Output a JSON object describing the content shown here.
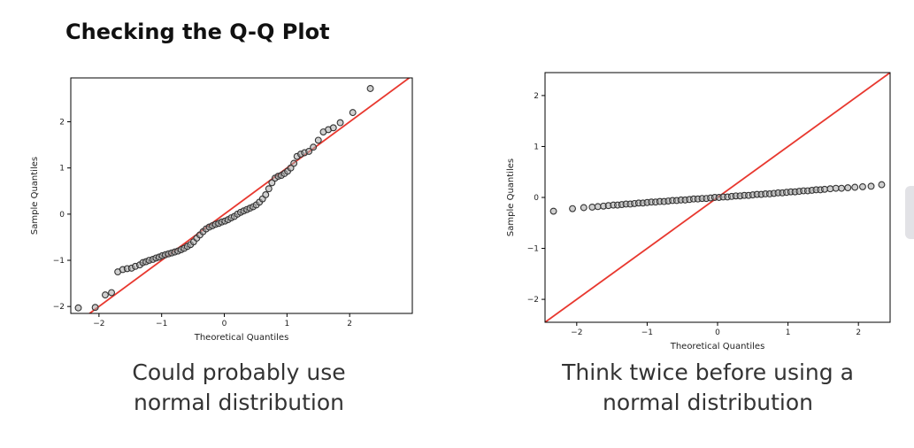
{
  "page": {
    "title": "Checking the Q-Q Plot"
  },
  "captions": {
    "left": [
      "Could probably use",
      "normal distribution"
    ],
    "right": [
      "Think twice before using a",
      "normal distribution"
    ]
  },
  "colors": {
    "reference_line": "#e8382f",
    "marker_edge": "#333333",
    "marker_fill": "#aaaaaa"
  },
  "chart_data": [
    {
      "type": "scatter",
      "xlabel": "Theoretical Quantiles",
      "ylabel": "Sample Quantiles",
      "xlim": [
        -2.45,
        3.0
      ],
      "ylim": [
        -2.15,
        2.95
      ],
      "xticks": [
        -2,
        -1,
        0,
        1,
        2
      ],
      "yticks": [
        -2,
        -1,
        0,
        1,
        2
      ],
      "reference_line": {
        "slope": 1,
        "intercept": 0
      },
      "points": [
        [
          -2.33,
          -2.03
        ],
        [
          -2.06,
          -2.02
        ],
        [
          -1.9,
          -1.75
        ],
        [
          -1.8,
          -1.7
        ],
        [
          -1.7,
          -1.25
        ],
        [
          -1.62,
          -1.2
        ],
        [
          -1.55,
          -1.18
        ],
        [
          -1.48,
          -1.17
        ],
        [
          -1.42,
          -1.13
        ],
        [
          -1.35,
          -1.1
        ],
        [
          -1.3,
          -1.05
        ],
        [
          -1.25,
          -1.03
        ],
        [
          -1.2,
          -1.0
        ],
        [
          -1.14,
          -0.98
        ],
        [
          -1.09,
          -0.95
        ],
        [
          -1.04,
          -0.93
        ],
        [
          -0.99,
          -0.9
        ],
        [
          -0.94,
          -0.88
        ],
        [
          -0.89,
          -0.86
        ],
        [
          -0.84,
          -0.84
        ],
        [
          -0.79,
          -0.82
        ],
        [
          -0.74,
          -0.8
        ],
        [
          -0.69,
          -0.77
        ],
        [
          -0.64,
          -0.74
        ],
        [
          -0.59,
          -0.7
        ],
        [
          -0.54,
          -0.66
        ],
        [
          -0.49,
          -0.6
        ],
        [
          -0.44,
          -0.52
        ],
        [
          -0.39,
          -0.45
        ],
        [
          -0.34,
          -0.38
        ],
        [
          -0.29,
          -0.32
        ],
        [
          -0.24,
          -0.28
        ],
        [
          -0.19,
          -0.25
        ],
        [
          -0.14,
          -0.22
        ],
        [
          -0.09,
          -0.2
        ],
        [
          -0.04,
          -0.17
        ],
        [
          0.01,
          -0.15
        ],
        [
          0.06,
          -0.12
        ],
        [
          0.11,
          -0.08
        ],
        [
          0.16,
          -0.05
        ],
        [
          0.21,
          0.0
        ],
        [
          0.26,
          0.04
        ],
        [
          0.31,
          0.07
        ],
        [
          0.36,
          0.1
        ],
        [
          0.41,
          0.13
        ],
        [
          0.46,
          0.16
        ],
        [
          0.51,
          0.2
        ],
        [
          0.56,
          0.26
        ],
        [
          0.61,
          0.33
        ],
        [
          0.66,
          0.42
        ],
        [
          0.71,
          0.55
        ],
        [
          0.76,
          0.68
        ],
        [
          0.81,
          0.78
        ],
        [
          0.86,
          0.82
        ],
        [
          0.91,
          0.84
        ],
        [
          0.96,
          0.88
        ],
        [
          1.01,
          0.93
        ],
        [
          1.06,
          1.0
        ],
        [
          1.11,
          1.1
        ],
        [
          1.16,
          1.25
        ],
        [
          1.22,
          1.3
        ],
        [
          1.28,
          1.33
        ],
        [
          1.35,
          1.36
        ],
        [
          1.42,
          1.45
        ],
        [
          1.5,
          1.6
        ],
        [
          1.58,
          1.78
        ],
        [
          1.66,
          1.83
        ],
        [
          1.74,
          1.87
        ],
        [
          1.85,
          1.98
        ],
        [
          2.05,
          2.2
        ],
        [
          2.33,
          2.72
        ]
      ]
    },
    {
      "type": "scatter",
      "xlabel": "Theoretical Quantiles",
      "ylabel": "Sample Quantiles",
      "xlim": [
        -2.45,
        2.45
      ],
      "ylim": [
        -2.45,
        2.45
      ],
      "xticks": [
        -2,
        -1,
        0,
        1,
        2
      ],
      "yticks": [
        -2,
        -1,
        0,
        1,
        2
      ],
      "reference_line": {
        "slope": 1,
        "intercept": 0
      },
      "points": [
        [
          -2.33,
          -0.27
        ],
        [
          -2.06,
          -0.22
        ],
        [
          -1.9,
          -0.2
        ],
        [
          -1.78,
          -0.19
        ],
        [
          -1.7,
          -0.18
        ],
        [
          -1.62,
          -0.17
        ],
        [
          -1.55,
          -0.16
        ],
        [
          -1.48,
          -0.15
        ],
        [
          -1.42,
          -0.15
        ],
        [
          -1.36,
          -0.14
        ],
        [
          -1.3,
          -0.13
        ],
        [
          -1.24,
          -0.13
        ],
        [
          -1.18,
          -0.12
        ],
        [
          -1.12,
          -0.11
        ],
        [
          -1.06,
          -0.11
        ],
        [
          -1.0,
          -0.1
        ],
        [
          -0.94,
          -0.09
        ],
        [
          -0.88,
          -0.09
        ],
        [
          -0.82,
          -0.08
        ],
        [
          -0.76,
          -0.08
        ],
        [
          -0.7,
          -0.07
        ],
        [
          -0.64,
          -0.06
        ],
        [
          -0.58,
          -0.06
        ],
        [
          -0.52,
          -0.05
        ],
        [
          -0.46,
          -0.05
        ],
        [
          -0.4,
          -0.04
        ],
        [
          -0.34,
          -0.03
        ],
        [
          -0.28,
          -0.03
        ],
        [
          -0.22,
          -0.02
        ],
        [
          -0.16,
          -0.02
        ],
        [
          -0.1,
          -0.01
        ],
        [
          -0.04,
          0.0
        ],
        [
          0.02,
          0.0
        ],
        [
          0.08,
          0.01
        ],
        [
          0.14,
          0.01
        ],
        [
          0.2,
          0.02
        ],
        [
          0.26,
          0.03
        ],
        [
          0.32,
          0.03
        ],
        [
          0.38,
          0.04
        ],
        [
          0.44,
          0.04
        ],
        [
          0.5,
          0.05
        ],
        [
          0.56,
          0.06
        ],
        [
          0.62,
          0.06
        ],
        [
          0.68,
          0.07
        ],
        [
          0.74,
          0.07
        ],
        [
          0.8,
          0.08
        ],
        [
          0.86,
          0.09
        ],
        [
          0.92,
          0.09
        ],
        [
          0.98,
          0.1
        ],
        [
          1.04,
          0.11
        ],
        [
          1.1,
          0.11
        ],
        [
          1.16,
          0.12
        ],
        [
          1.22,
          0.13
        ],
        [
          1.28,
          0.13
        ],
        [
          1.34,
          0.14
        ],
        [
          1.4,
          0.15
        ],
        [
          1.46,
          0.15
        ],
        [
          1.52,
          0.16
        ],
        [
          1.6,
          0.17
        ],
        [
          1.68,
          0.18
        ],
        [
          1.76,
          0.18
        ],
        [
          1.85,
          0.19
        ],
        [
          1.95,
          0.2
        ],
        [
          2.06,
          0.21
        ],
        [
          2.18,
          0.22
        ],
        [
          2.33,
          0.25
        ]
      ]
    }
  ]
}
